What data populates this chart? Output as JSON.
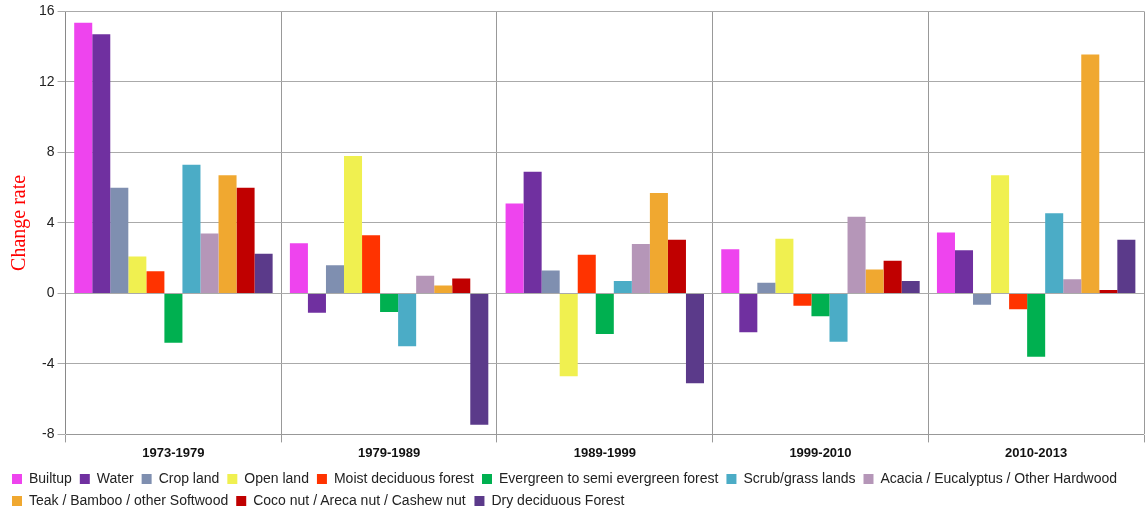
{
  "chart_data": {
    "type": "bar",
    "ylabel": "Change rate",
    "categories": [
      "1973-1979",
      "1979-1989",
      "1989-1999",
      "1999-2010",
      "2010-2013"
    ],
    "series": [
      {
        "name": "Builtup",
        "color": "#ee44ee",
        "values": [
          15.35,
          2.85,
          5.1,
          2.5,
          3.45
        ]
      },
      {
        "name": "Water",
        "color": "#7030a0",
        "values": [
          14.7,
          -1.1,
          6.9,
          -2.2,
          2.45
        ]
      },
      {
        "name": "Crop land",
        "color": "#7f8fb0",
        "values": [
          6.0,
          1.6,
          1.3,
          0.6,
          -0.65
        ]
      },
      {
        "name": "Open land",
        "color": "#f0f050",
        "values": [
          2.1,
          7.8,
          -4.7,
          3.1,
          6.7
        ]
      },
      {
        "name": "Moist deciduous forest",
        "color": "#ff3300",
        "values": [
          1.25,
          3.3,
          2.2,
          -0.7,
          -0.9
        ]
      },
      {
        "name": "Evergreen to semi evergreen forest",
        "color": "#00b050",
        "values": [
          -2.8,
          -1.05,
          -2.3,
          -1.3,
          -3.6
        ]
      },
      {
        "name": "Scrub/grass lands",
        "color": "#4bacc6",
        "values": [
          7.3,
          -3.0,
          0.7,
          -2.75,
          4.55
        ]
      },
      {
        "name": "Acacia / Eucalyptus / Other Hardwood",
        "color": "#b596b8",
        "values": [
          3.4,
          1.0,
          2.8,
          4.35,
          0.8
        ]
      },
      {
        "name": "Teak / Bamboo / other Softwood",
        "color": "#f0a830",
        "values": [
          6.7,
          0.45,
          5.7,
          1.35,
          13.55
        ]
      },
      {
        "name": "Coco nut / Areca nut / Cashew nut",
        "color": "#c00000",
        "values": [
          6.0,
          0.85,
          3.05,
          1.85,
          0.2
        ]
      },
      {
        "name": "Dry deciduous Forest",
        "color": "#5b3a8a",
        "values": [
          2.25,
          -7.45,
          -5.1,
          0.7,
          3.05
        ]
      }
    ],
    "ylim": [
      -8,
      16
    ],
    "yticks": [
      -8,
      -4,
      0,
      4,
      8,
      12,
      16
    ],
    "grid": true,
    "legend": "bottom"
  }
}
